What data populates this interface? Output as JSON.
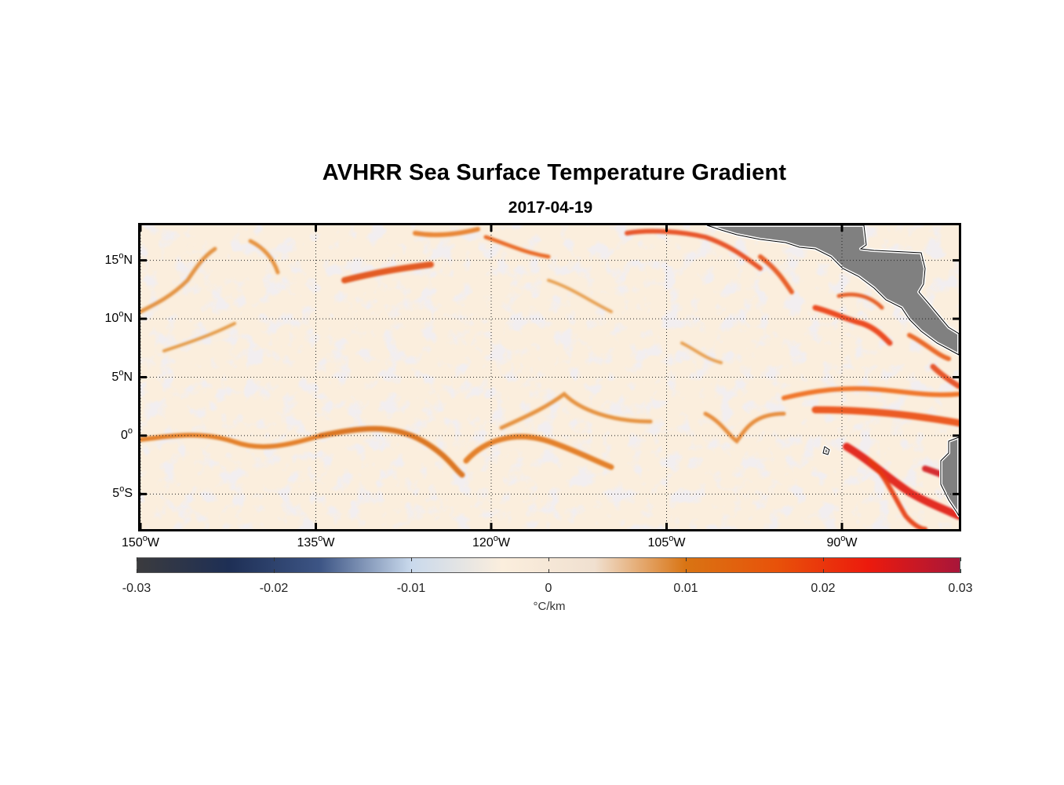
{
  "title": "AVHRR Sea Surface Temperature Gradient",
  "subtitle": "2017-04-19",
  "map": {
    "lat_range": [
      -8,
      18
    ],
    "lon_range": [
      -150,
      -80
    ],
    "lat_ticks": [
      {
        "value": 15,
        "num": "15",
        "hemi": "N"
      },
      {
        "value": 10,
        "num": "10",
        "hemi": "N"
      },
      {
        "value": 5,
        "num": "5",
        "hemi": "N"
      },
      {
        "value": 0,
        "num": "0",
        "hemi": ""
      },
      {
        "value": -5,
        "num": "5",
        "hemi": "S"
      }
    ],
    "lon_ticks": [
      {
        "value": -150,
        "num": "150",
        "hemi": "W"
      },
      {
        "value": -135,
        "num": "135",
        "hemi": "W"
      },
      {
        "value": -120,
        "num": "120",
        "hemi": "W"
      },
      {
        "value": -105,
        "num": "105",
        "hemi": "W"
      },
      {
        "value": -90,
        "num": "90",
        "hemi": "W"
      }
    ],
    "degree_symbol": "o",
    "land_color": "#808080",
    "ocean_background": "#fbeedd",
    "grid": "dotted"
  },
  "colorbar": {
    "min": -0.03,
    "max": 0.03,
    "ticks": [
      "-0.03",
      "-0.02",
      "-0.01",
      "0",
      "0.01",
      "0.02",
      "0.03"
    ],
    "units": "°C/km",
    "colors": [
      "#3b3b3e",
      "#1e2f55",
      "#3d5585",
      "#c9d9ec",
      "#fbeedd",
      "#f0e0d0",
      "#d97413",
      "#e8520a",
      "#ec1a0d",
      "#a8163a"
    ]
  }
}
